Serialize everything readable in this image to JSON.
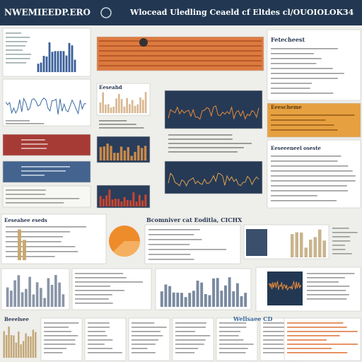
{
  "header": {
    "title": "NWEMIEEDP.ERO",
    "subtitle": "Wlocead Uledling Ceaeld cf Eltdes cl/OUOIOLOK34"
  },
  "panels": {
    "right_top": "Fetecheest",
    "right_mid": "Eeescheme",
    "right_lower": "Eeseeeneel oseste",
    "mid_left": "Eeseahd",
    "mid_row_title": "Bcomniver cat Eoditla, CICHX",
    "left_row": "Eeseahee eseds",
    "bottom_right": "Wellsaee CD",
    "bottom_left": "Beeelsee"
  }
}
